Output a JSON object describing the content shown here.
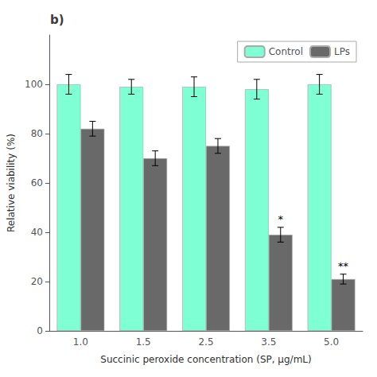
{
  "chart_data": {
    "type": "bar",
    "title": "b)",
    "xlabel": "Succinic peroxide concentration (SP, μg/mL)",
    "ylabel": "Relative viability (%)",
    "categories": [
      "1.0",
      "1.5",
      "2.5",
      "3.5",
      "5.0"
    ],
    "series": [
      {
        "name": "Control",
        "color": "#7FFFD4",
        "values": [
          100,
          99,
          99,
          98,
          100
        ],
        "errors": [
          4,
          3,
          4,
          4,
          4
        ]
      },
      {
        "name": "LPs",
        "color": "#696969",
        "values": [
          82,
          70,
          75,
          39,
          21
        ],
        "errors": [
          3,
          3,
          3,
          3,
          2
        ]
      }
    ],
    "annotations": [
      {
        "text": "*",
        "category": "3.5",
        "series": "LPs"
      },
      {
        "text": "**",
        "category": "5.0",
        "series": "LPs"
      }
    ],
    "ylim": [
      0,
      120
    ],
    "yticks": [
      0,
      20,
      40,
      60,
      80,
      100
    ],
    "grid": false,
    "legend": "upper right"
  }
}
